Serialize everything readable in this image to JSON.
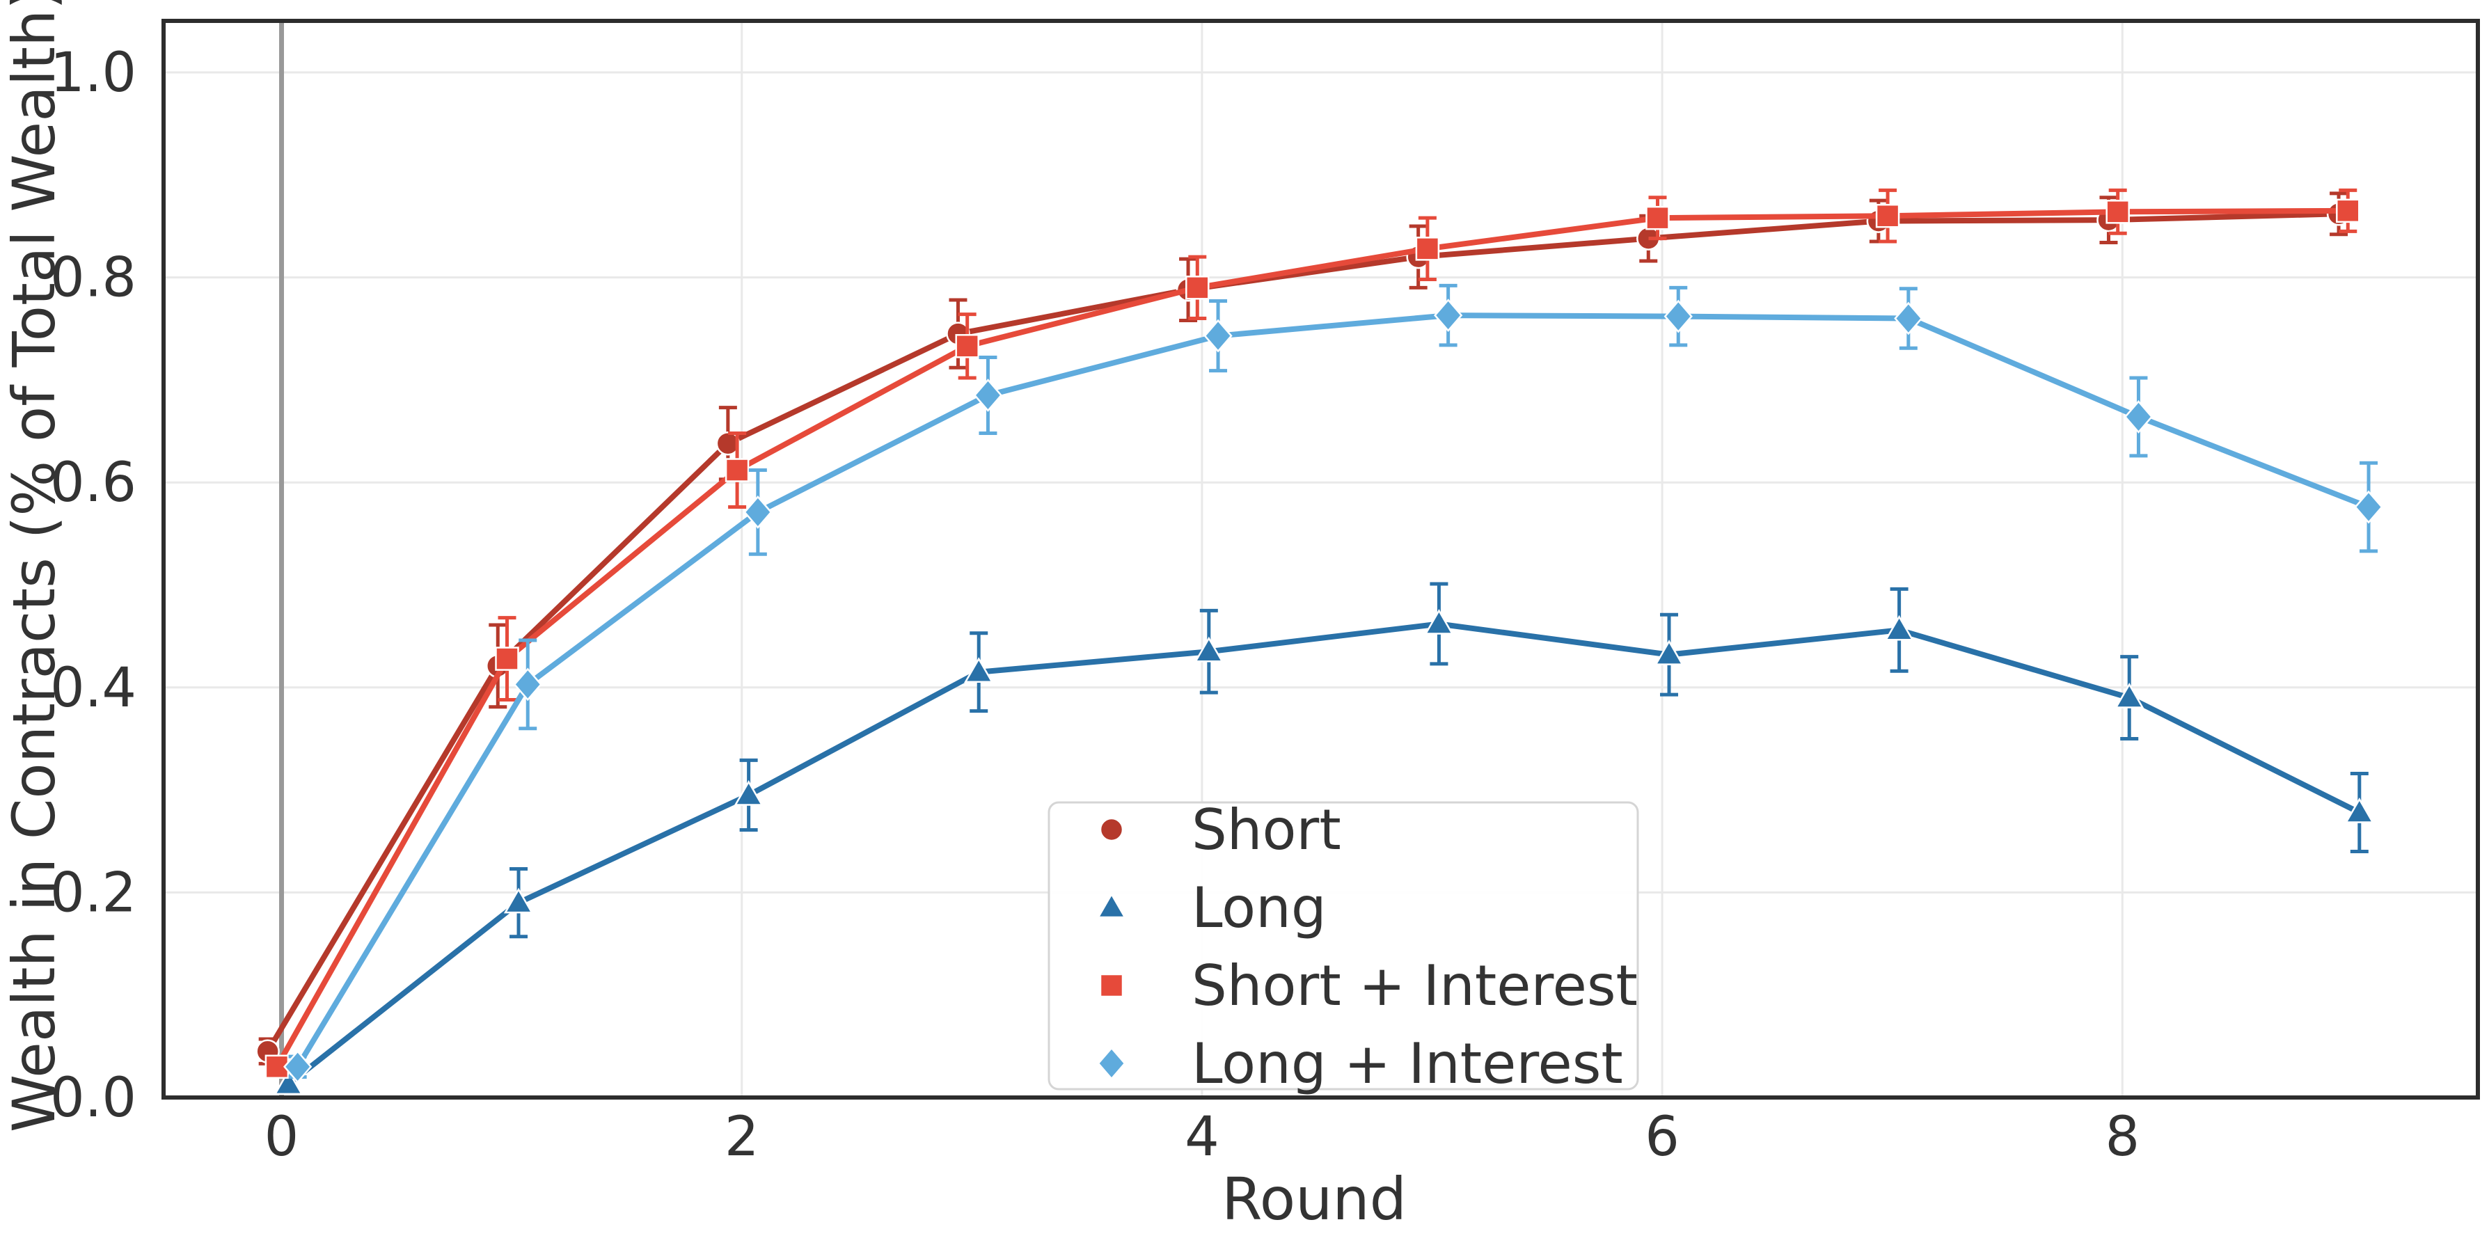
{
  "figure": {
    "xlabel": "Round",
    "ylabel": "Wealth in Contracts (% of Total Wealth)"
  },
  "chart_data": {
    "type": "line",
    "title": "",
    "xlabel": "Round",
    "ylabel": "Wealth in Contracts (% of Total Wealth)",
    "x": [
      0,
      1,
      2,
      3,
      4,
      5,
      6,
      7,
      8,
      9
    ],
    "xlim": [
      -0.51,
      9.55
    ],
    "ylim": [
      0,
      1.05
    ],
    "xticks": [
      0,
      2,
      4,
      6,
      8
    ],
    "xtick_labels": [
      "0",
      "2",
      "4",
      "6",
      "8"
    ],
    "yticks": [
      0.0,
      0.2,
      0.4,
      0.6,
      0.8,
      1.0
    ],
    "ytick_labels": [
      "0.0",
      "0.2",
      "0.4",
      "0.6",
      "0.8",
      "1.0"
    ],
    "grid": true,
    "vline_x": 0,
    "legend_position": "lower center",
    "legend": [
      "Short",
      "Long",
      "Short + Interest",
      "Long + Interest"
    ],
    "series": [
      {
        "name": "Short",
        "marker": "circle",
        "color": "#b5392b",
        "x_offset": -0.06,
        "values": [
          0.045,
          0.421,
          0.638,
          0.745,
          0.788,
          0.82,
          0.838,
          0.855,
          0.856,
          0.862
        ],
        "errors": [
          0.012,
          0.04,
          0.035,
          0.033,
          0.03,
          0.03,
          0.022,
          0.02,
          0.022,
          0.02
        ]
      },
      {
        "name": "Long",
        "marker": "triangle",
        "color": "#2971a8",
        "x_offset": 0.03,
        "values": [
          0.013,
          0.19,
          0.295,
          0.415,
          0.435,
          0.462,
          0.432,
          0.456,
          0.39,
          0.278
        ],
        "errors": [
          0.008,
          0.033,
          0.034,
          0.038,
          0.04,
          0.039,
          0.039,
          0.04,
          0.04,
          0.038
        ]
      },
      {
        "name": "Short + Interest",
        "marker": "square",
        "color": "#e64a3a",
        "x_offset": -0.02,
        "values": [
          0.03,
          0.428,
          0.612,
          0.733,
          0.79,
          0.828,
          0.858,
          0.86,
          0.864,
          0.865
        ],
        "errors": [
          0.01,
          0.04,
          0.036,
          0.031,
          0.03,
          0.03,
          0.02,
          0.025,
          0.021,
          0.02
        ]
      },
      {
        "name": "Long + Interest",
        "marker": "diamond",
        "color": "#5fabdd",
        "x_offset": 0.07,
        "values": [
          0.03,
          0.403,
          0.571,
          0.685,
          0.743,
          0.763,
          0.762,
          0.76,
          0.664,
          0.576
        ],
        "errors": [
          0.01,
          0.043,
          0.041,
          0.037,
          0.034,
          0.029,
          0.028,
          0.029,
          0.038,
          0.043
        ]
      }
    ],
    "style": {
      "grid_color": "#e9e9e9",
      "spine_color": "#2d2d2d",
      "vline_color": "#999999",
      "text_color": "#333333",
      "legend_border_color": "#d5d5d5",
      "background": "#ffffff"
    }
  }
}
